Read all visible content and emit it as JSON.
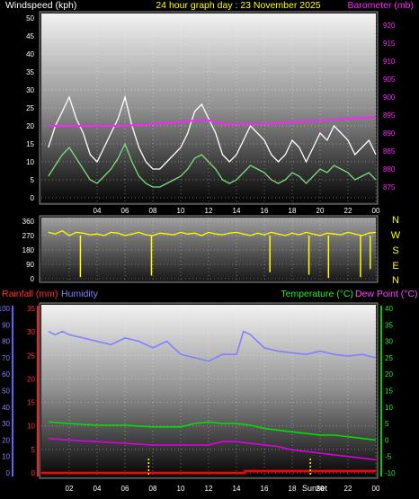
{
  "header": {
    "left": "Windspeed (kph)",
    "center": "24 hour graph day : 23 November 2025",
    "right": "Barometer (mb)"
  },
  "bottom_header": {
    "rain_label": "Rainfall (mm)",
    "hum_label": "Humidity",
    "temp_label": "Temperature (°C)",
    "dew_label": "Dew Point (°C)"
  },
  "compass": [
    "N",
    "W",
    "S",
    "E",
    "N"
  ],
  "sunset_label": "Sunset",
  "colors": {
    "wind_max": "#ffffff",
    "wind_avg": "#7ddc7d",
    "barometer": "#ff22ff",
    "direction": "#ffff00",
    "humidity": "#8080ff",
    "temperature": "#00dd00",
    "dewpoint": "#dd00dd",
    "rainfall": "#ff0000"
  },
  "chart_data": [
    {
      "type": "line",
      "title": "24 hour graph day : 23 November 2025",
      "x_ticks": [
        "04",
        "06",
        "08",
        "10",
        "12",
        "14",
        "16",
        "18",
        "20",
        "22",
        "00"
      ],
      "x_hours": [
        4,
        6,
        8,
        10,
        12,
        14,
        16,
        18,
        20,
        22,
        24
      ],
      "y_left_label": "Windspeed (kph)",
      "y_left_ticks": [
        0,
        5,
        10,
        15,
        20,
        25,
        30,
        35,
        40,
        45,
        50
      ],
      "y_left_range": [
        0,
        50
      ],
      "y_right_label": "Barometer (mb)",
      "y_right_ticks": [
        875,
        880,
        885,
        890,
        895,
        900,
        905,
        910,
        915,
        920
      ],
      "y_right_range": [
        872,
        922
      ],
      "series": [
        {
          "key": "wind_max",
          "axis": "left",
          "x": [
            0.5,
            1,
            1.5,
            2,
            2.5,
            3,
            3.5,
            4,
            4.5,
            5,
            5.5,
            6,
            6.5,
            7,
            7.5,
            8,
            8.5,
            9,
            9.5,
            10,
            10.5,
            11,
            11.5,
            12,
            12.5,
            13,
            13.5,
            14,
            14.5,
            15,
            15.5,
            16,
            16.5,
            17,
            17.5,
            18,
            18.5,
            19,
            19.5,
            20,
            20.5,
            21,
            21.5,
            22,
            22.5,
            23,
            23.5,
            24
          ],
          "values": [
            14,
            20,
            24,
            28,
            22,
            18,
            12,
            10,
            14,
            18,
            22,
            28,
            20,
            14,
            10,
            8,
            8,
            10,
            12,
            14,
            18,
            24,
            26,
            22,
            18,
            12,
            10,
            12,
            16,
            20,
            18,
            16,
            12,
            10,
            12,
            16,
            14,
            10,
            14,
            18,
            16,
            20,
            18,
            16,
            12,
            14,
            16,
            12
          ]
        },
        {
          "key": "wind_avg",
          "axis": "left",
          "x": [
            0.5,
            1,
            1.5,
            2,
            2.5,
            3,
            3.5,
            4,
            4.5,
            5,
            5.5,
            6,
            6.5,
            7,
            7.5,
            8,
            8.5,
            9,
            9.5,
            10,
            10.5,
            11,
            11.5,
            12,
            12.5,
            13,
            13.5,
            14,
            14.5,
            15,
            15.5,
            16,
            16.5,
            17,
            17.5,
            18,
            18.5,
            19,
            19.5,
            20,
            20.5,
            21,
            21.5,
            22,
            22.5,
            23,
            23.5,
            24
          ],
          "values": [
            6,
            9,
            12,
            14,
            11,
            8,
            5,
            4,
            6,
            8,
            11,
            15,
            10,
            6,
            4,
            3,
            3,
            4,
            5,
            6,
            8,
            11,
            12,
            10,
            8,
            5,
            4,
            5,
            7,
            9,
            8,
            7,
            5,
            4,
            5,
            7,
            6,
            4,
            6,
            8,
            7,
            9,
            8,
            7,
            5,
            6,
            7,
            5
          ]
        },
        {
          "key": "barometer",
          "axis": "right",
          "x": [
            0.5,
            2,
            4,
            6,
            8,
            10,
            11,
            12,
            13,
            14,
            16,
            18,
            20,
            22,
            24
          ],
          "values": [
            892,
            892,
            892,
            892,
            892.5,
            893,
            893.5,
            893.5,
            892.5,
            892.5,
            892.5,
            893,
            893.5,
            894,
            894.5
          ]
        }
      ]
    },
    {
      "type": "scatter",
      "y_ticks": [
        0,
        90,
        180,
        270,
        360
      ],
      "y_range": [
        0,
        360
      ],
      "series": [
        {
          "key": "direction",
          "x": [
            0.5,
            1,
            1.5,
            2,
            2.5,
            3,
            3.5,
            4,
            4.5,
            5,
            5.5,
            6,
            6.5,
            7,
            7.5,
            8,
            8.5,
            9,
            9.5,
            10,
            10.5,
            11,
            11.5,
            12,
            12.5,
            13,
            13.5,
            14,
            14.5,
            15,
            15.5,
            16,
            16.5,
            17,
            17.5,
            18,
            18.5,
            19,
            19.5,
            20,
            20.5,
            21,
            21.5,
            22,
            22.5,
            23,
            23.5,
            24
          ],
          "values": [
            290,
            280,
            300,
            270,
            290,
            285,
            275,
            280,
            270,
            290,
            285,
            270,
            280,
            290,
            275,
            270,
            285,
            280,
            275,
            290,
            280,
            285,
            270,
            290,
            280,
            275,
            285,
            290,
            280,
            270,
            285,
            275,
            290,
            280,
            270,
            285,
            275,
            290,
            280,
            270,
            285,
            280,
            275,
            290,
            280,
            270,
            285,
            290
          ]
        },
        {
          "key": "direction_dips",
          "x": [
            2.8,
            7.9,
            16.4,
            19.2,
            20.6,
            22.9,
            23.6
          ],
          "values": [
            10,
            20,
            40,
            25,
            5,
            10,
            60
          ]
        }
      ]
    },
    {
      "type": "line",
      "x_ticks": [
        "02",
        "04",
        "06",
        "08",
        "10",
        "12",
        "14",
        "16",
        "18",
        "20",
        "22",
        "00"
      ],
      "x_hours": [
        2,
        4,
        6,
        8,
        10,
        12,
        14,
        16,
        18,
        20,
        22,
        24
      ],
      "y_left_label": "Rainfall (mm)",
      "y_left_ticks": [
        0,
        5,
        10,
        15,
        20,
        25,
        30,
        35
      ],
      "y_left_range": [
        0,
        35
      ],
      "y_far_left_label": "Humidity",
      "y_far_left_ticks": [
        0,
        10,
        20,
        30,
        40,
        50,
        60,
        70,
        80,
        90,
        100
      ],
      "y_far_left_range": [
        0,
        100
      ],
      "y_right_label": "Temperature (°C)",
      "y_right_ticks": [
        -10,
        -5,
        0,
        5,
        10,
        15,
        20,
        25,
        30,
        35,
        40
      ],
      "y_right_range": [
        -10,
        40
      ],
      "series": [
        {
          "key": "humidity",
          "axis": "far_left",
          "x": [
            0.5,
            1,
            1.5,
            2,
            3,
            4,
            5,
            6,
            7,
            8,
            9,
            10,
            11,
            12,
            13,
            14,
            14.5,
            15,
            16,
            17,
            18,
            19,
            20,
            21,
            22,
            23,
            24
          ],
          "values": [
            86,
            84,
            86,
            84,
            82,
            80,
            78,
            82,
            80,
            76,
            80,
            72,
            70,
            68,
            72,
            72,
            86,
            84,
            76,
            74,
            73,
            72,
            74,
            72,
            71,
            72,
            70
          ]
        },
        {
          "key": "temperature",
          "axis": "right",
          "x": [
            0.5,
            2,
            4,
            6,
            8,
            10,
            11,
            12,
            13,
            14,
            15,
            16,
            17,
            18,
            19,
            20,
            21,
            22,
            23,
            24
          ],
          "values": [
            5.5,
            5,
            4.5,
            4.5,
            4,
            4,
            5,
            5.5,
            5,
            5,
            4.5,
            3.5,
            3,
            2.5,
            2,
            1.5,
            1.5,
            1,
            0.5,
            0
          ]
        },
        {
          "key": "dewpoint",
          "axis": "right",
          "x": [
            0.5,
            2,
            4,
            6,
            8,
            10,
            12,
            13,
            14,
            15,
            16,
            17,
            18,
            19,
            20,
            21,
            22,
            23,
            24
          ],
          "values": [
            0.5,
            0,
            -0.5,
            -1,
            -1.5,
            -1.5,
            -1.5,
            -0.5,
            -0.5,
            -1,
            -1.5,
            -2,
            -3,
            -3.5,
            -4,
            -4.5,
            -5,
            -5.5,
            -6
          ]
        },
        {
          "key": "rainfall",
          "axis": "left",
          "x": [
            0,
            14.6,
            14.6,
            24
          ],
          "values": [
            0,
            0,
            0.4,
            0.4
          ]
        }
      ]
    }
  ]
}
